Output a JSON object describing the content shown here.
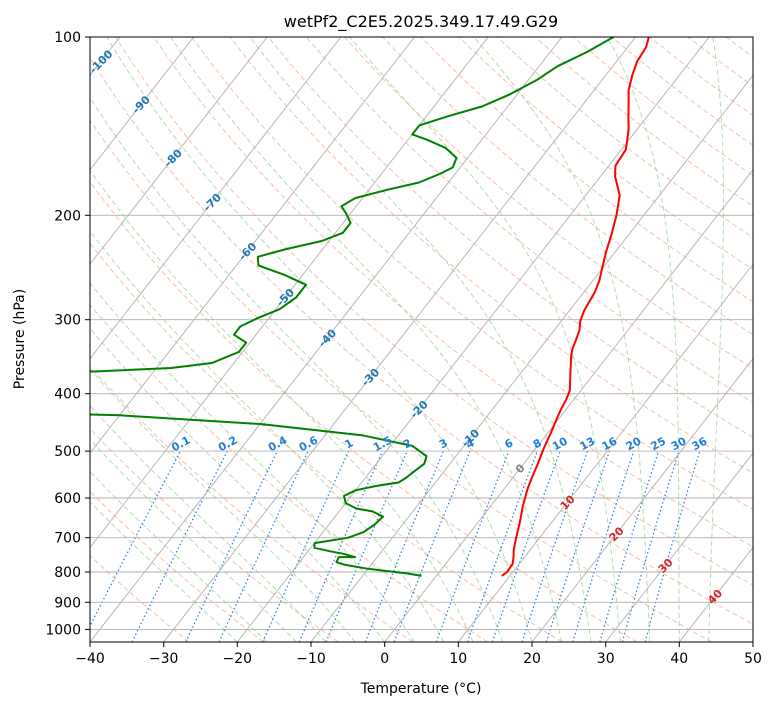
{
  "chart_data": {
    "type": "line",
    "title": "wetPf2_C2E5.2025.349.17.49.G29",
    "xlabel": "Temperature (°C)",
    "ylabel": "Pressure (hPa)",
    "xlim": [
      -40,
      50
    ],
    "ylim": [
      1050,
      100
    ],
    "yscale": "log",
    "grid": true,
    "x_ticks": [
      "−40",
      "−30",
      "−20",
      "−10",
      "0",
      "10",
      "20",
      "30",
      "40",
      "50"
    ],
    "x_tick_values": [
      -40,
      -30,
      -20,
      -10,
      0,
      10,
      20,
      30,
      40,
      50
    ],
    "y_ticks": [
      "100",
      "200",
      "300",
      "400",
      "500",
      "600",
      "700",
      "800",
      "900",
      "1000"
    ],
    "y_tick_values": [
      100,
      200,
      300,
      400,
      500,
      600,
      700,
      800,
      900,
      1000
    ],
    "colors": {
      "temperature": "#ff0000",
      "dewpoint": "#008000",
      "isotherm": "#b0b0b0",
      "dry_adiabat": "#f5a98a",
      "moist_adiabat": "#8fcf8f",
      "mixing_ratio": "#1f7fd8",
      "isotherm_label": "#1f77b4",
      "positive_label": "#d62728",
      "zero_label": "#808080"
    },
    "isotherm_labels": [
      {
        "text": "-100",
        "t": -100,
        "p": 110
      },
      {
        "text": "-90",
        "t": -90,
        "p": 130
      },
      {
        "text": "-80",
        "t": -80,
        "p": 160
      },
      {
        "text": "-70",
        "t": -70,
        "p": 190
      },
      {
        "text": "-60",
        "t": -60,
        "p": 230
      },
      {
        "text": "-50",
        "t": -50,
        "p": 275
      },
      {
        "text": "-40",
        "t": -40,
        "p": 322
      },
      {
        "text": "-30",
        "t": -30,
        "p": 375
      },
      {
        "text": "-20",
        "t": -20,
        "p": 425
      },
      {
        "text": "-10",
        "t": -10,
        "p": 475
      },
      {
        "text": "0",
        "t": 0,
        "p": 535
      },
      {
        "text": "10",
        "t": 10,
        "p": 610
      },
      {
        "text": "20",
        "t": 20,
        "p": 690
      },
      {
        "text": "30",
        "t": 30,
        "p": 780
      },
      {
        "text": "40",
        "t": 40,
        "p": 880
      }
    ],
    "mixing_ratio_labels": [
      "0.1",
      "0.2",
      "0.4",
      "0.6",
      "1",
      "1.5",
      "2",
      "3",
      "4",
      "6",
      "8",
      "10",
      "13",
      "16",
      "20",
      "25",
      "30",
      "36"
    ],
    "mixing_ratio_values": [
      0.1,
      0.2,
      0.4,
      0.6,
      1,
      1.5,
      2,
      3,
      4,
      6,
      8,
      10,
      13,
      16,
      20,
      25,
      30,
      36
    ],
    "series": [
      {
        "key": "temperature",
        "points": [
          [
            8.9,
            812
          ],
          [
            9.2,
            800
          ],
          [
            9.1,
            775
          ],
          [
            8.5,
            755
          ],
          [
            7.8,
            735
          ],
          [
            6.8,
            700
          ],
          [
            5.7,
            660
          ],
          [
            4.4,
            620
          ],
          [
            3.2,
            580
          ],
          [
            2.6,
            555
          ],
          [
            1.9,
            525
          ],
          [
            1.1,
            495
          ],
          [
            0.4,
            465
          ],
          [
            -0.3,
            440
          ],
          [
            -0.7,
            425
          ],
          [
            -1.0,
            410
          ],
          [
            -1.5,
            395
          ],
          [
            -3.2,
            370
          ],
          [
            -5.0,
            345
          ],
          [
            -5.6,
            335
          ],
          [
            -6.0,
            325
          ],
          [
            -6.6,
            312
          ],
          [
            -7.4,
            302
          ],
          [
            -8.0,
            290
          ],
          [
            -8.5,
            270
          ],
          [
            -9.1,
            258
          ],
          [
            -10.1,
            245
          ],
          [
            -11.3,
            230
          ],
          [
            -12.4,
            215
          ],
          [
            -13.7,
            200
          ],
          [
            -15.4,
            185
          ],
          [
            -18.0,
            172
          ],
          [
            -19.1,
            165
          ],
          [
            -19.4,
            155
          ],
          [
            -20.1,
            150
          ],
          [
            -21.2,
            143
          ],
          [
            -22.4,
            137
          ],
          [
            -23.8,
            130
          ],
          [
            -25.3,
            123
          ],
          [
            -26.4,
            116
          ],
          [
            -27.2,
            110
          ],
          [
            -27.5,
            104
          ],
          [
            -28.2,
            100
          ]
        ]
      },
      {
        "key": "dewpoint",
        "points": [
          [
            -2.0,
            812
          ],
          [
            -4.0,
            805
          ],
          [
            -10.0,
            790
          ],
          [
            -13.5,
            778
          ],
          [
            -15.0,
            770
          ],
          [
            -15.2,
            755
          ],
          [
            -13.0,
            755
          ],
          [
            -15.0,
            745
          ],
          [
            -17.0,
            738
          ],
          [
            -19.5,
            728
          ],
          [
            -20.0,
            715
          ],
          [
            -16.0,
            700
          ],
          [
            -14.5,
            685
          ],
          [
            -13.8,
            665
          ],
          [
            -13.5,
            645
          ],
          [
            -15.5,
            632
          ],
          [
            -18.0,
            625
          ],
          [
            -20.0,
            612
          ],
          [
            -21.0,
            595
          ],
          [
            -20.0,
            582
          ],
          [
            -17.5,
            572
          ],
          [
            -15.0,
            565
          ],
          [
            -14.5,
            555
          ],
          [
            -14.2,
            545
          ],
          [
            -13.5,
            525
          ],
          [
            -14.0,
            510
          ],
          [
            -17.0,
            490
          ],
          [
            -25.0,
            470
          ],
          [
            -40.0,
            450
          ],
          [
            -60.0,
            435
          ],
          [
            -90.0,
            425
          ],
          [
            -100.0,
            370
          ],
          [
            -68.0,
            367
          ],
          [
            -58.0,
            362
          ],
          [
            -53.0,
            355
          ],
          [
            -50.5,
            340
          ],
          [
            -50.5,
            328
          ],
          [
            -53.0,
            318
          ],
          [
            -53.0,
            308
          ],
          [
            -51.5,
            298
          ],
          [
            -49.5,
            288
          ],
          [
            -48.5,
            275
          ],
          [
            -48.5,
            262
          ],
          [
            -52.5,
            252
          ],
          [
            -57.0,
            243
          ],
          [
            -58.0,
            235
          ],
          [
            -55.0,
            228
          ],
          [
            -51.0,
            221
          ],
          [
            -49.0,
            214
          ],
          [
            -49.0,
            206
          ],
          [
            -50.5,
            199
          ],
          [
            -52.0,
            193
          ],
          [
            -51.0,
            187
          ],
          [
            -47.5,
            181
          ],
          [
            -44.0,
            176
          ],
          [
            -42.0,
            170
          ],
          [
            -41.0,
            166
          ],
          [
            -41.5,
            160
          ],
          [
            -44.0,
            154
          ],
          [
            -47.5,
            149
          ],
          [
            -50.0,
            146
          ],
          [
            -50.0,
            141
          ],
          [
            -47.0,
            136
          ],
          [
            -43.5,
            131
          ],
          [
            -41.0,
            125
          ],
          [
            -38.8,
            118
          ],
          [
            -37.5,
            112
          ],
          [
            -35.0,
            106
          ],
          [
            -33.0,
            100
          ]
        ]
      }
    ]
  }
}
